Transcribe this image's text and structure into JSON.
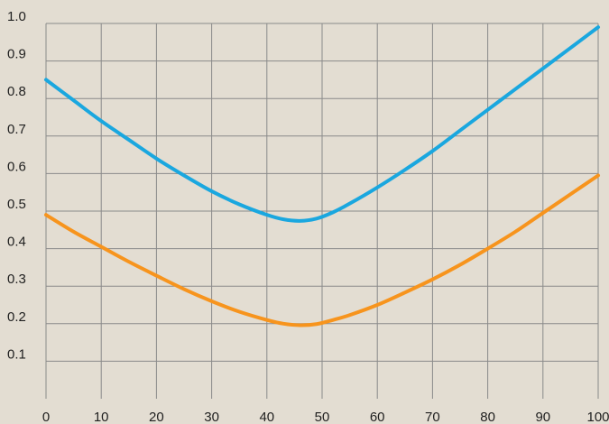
{
  "chart_data": {
    "type": "line",
    "title": "",
    "xlabel": "",
    "ylabel": "",
    "xlim": [
      0,
      100
    ],
    "ylim": [
      0,
      1.0
    ],
    "grid": true,
    "legend": "none",
    "x_ticks": [
      0,
      10,
      20,
      30,
      40,
      50,
      60,
      70,
      80,
      90,
      100
    ],
    "x_tick_labels": [
      "0",
      "10",
      "20",
      "30",
      "40",
      "50",
      "60",
      "70",
      "80",
      "90",
      "100"
    ],
    "y_ticks": [
      0.1,
      0.2,
      0.3,
      0.4,
      0.5,
      0.6,
      0.7,
      0.8,
      0.9,
      1.0
    ],
    "y_tick_labels": [
      "0.1",
      "0.2",
      "0.3",
      "0.4",
      "0.5",
      "0.6",
      "0.7",
      "0.8",
      "0.9",
      "1.0"
    ],
    "colors": {
      "background": "#e3ddd2",
      "grid": "#8a8a8a",
      "text": "#1f1f1f"
    },
    "x": [
      0,
      5,
      10,
      15,
      20,
      25,
      30,
      35,
      40,
      43,
      46,
      49,
      52,
      55,
      60,
      65,
      70,
      75,
      80,
      85,
      90,
      95,
      100
    ],
    "series": [
      {
        "color": "#1aa7df",
        "values": [
          0.85,
          0.795,
          0.74,
          0.69,
          0.64,
          0.595,
          0.553,
          0.518,
          0.49,
          0.478,
          0.474,
          0.48,
          0.497,
          0.52,
          0.563,
          0.61,
          0.66,
          0.715,
          0.77,
          0.825,
          0.88,
          0.935,
          0.99
        ]
      },
      {
        "color": "#f7941d",
        "values": [
          0.49,
          0.445,
          0.405,
          0.365,
          0.328,
          0.292,
          0.26,
          0.232,
          0.21,
          0.2,
          0.196,
          0.199,
          0.21,
          0.223,
          0.25,
          0.283,
          0.318,
          0.357,
          0.4,
          0.445,
          0.495,
          0.545,
          0.595
        ]
      }
    ]
  }
}
